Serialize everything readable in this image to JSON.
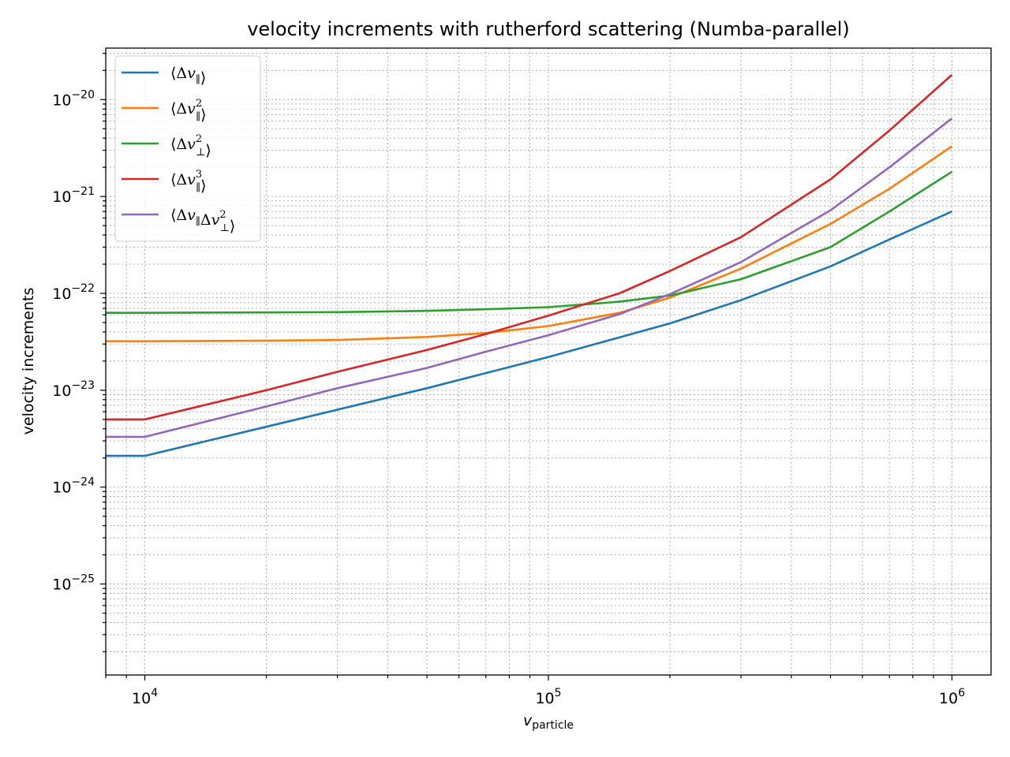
{
  "chart_data": {
    "type": "line",
    "title": "velocity increments with rutherford scattering (Numba-parallel)",
    "xlabel": "v",
    "xlabel_sub": "particle",
    "ylabel": "velocity increments",
    "xscale": "log",
    "yscale": "log",
    "xlim": [
      8000,
      1250000
    ],
    "ylim": [
      1.15e-26,
      3.4e-20
    ],
    "grid": true,
    "grid_minor": true,
    "legend_position": "top-left",
    "x_ticks": [
      {
        "value": 10000,
        "base": "10",
        "exp": "4"
      },
      {
        "value": 100000,
        "base": "10",
        "exp": "5"
      },
      {
        "value": 1000000,
        "base": "10",
        "exp": "6"
      }
    ],
    "y_ticks": [
      {
        "value": 1e-25,
        "base": "10",
        "exp": "−25"
      },
      {
        "value": 1e-24,
        "base": "10",
        "exp": "−24"
      },
      {
        "value": 1e-23,
        "base": "10",
        "exp": "−23"
      },
      {
        "value": 1e-22,
        "base": "10",
        "exp": "−22"
      },
      {
        "value": 1e-21,
        "base": "10",
        "exp": "−21"
      },
      {
        "value": 1e-20,
        "base": "10",
        "exp": "−20"
      }
    ],
    "series": [
      {
        "name": "⟨Δv∥⟩",
        "legend": {
          "pre": "⟨Δ",
          "v": "v",
          "sub": "∥",
          "sup": "",
          "v2": "",
          "sub2": "",
          "sup2": "",
          "post": "⟩"
        },
        "color": "#1f77b4",
        "points": [
          [
            8000,
            2.1e-24
          ],
          [
            10000,
            2.1e-24
          ],
          [
            20000,
            4.2e-24
          ],
          [
            50000,
            1.05e-23
          ],
          [
            100000,
            2.2e-23
          ],
          [
            200000,
            4.9e-23
          ],
          [
            300000,
            8.5e-23
          ],
          [
            500000,
            1.9e-22
          ],
          [
            700000,
            3.6e-22
          ],
          [
            1000000,
            7e-22
          ]
        ]
      },
      {
        "name": "⟨Δv∥²⟩",
        "legend": {
          "pre": "⟨Δ",
          "v": "v",
          "sub": "∥",
          "sup": "2",
          "v2": "",
          "sub2": "",
          "sup2": "",
          "post": "⟩"
        },
        "color": "#ff7f0e",
        "points": [
          [
            8000,
            3.2e-23
          ],
          [
            10000,
            3.2e-23
          ],
          [
            20000,
            3.25e-23
          ],
          [
            30000,
            3.3e-23
          ],
          [
            50000,
            3.55e-23
          ],
          [
            70000,
            3.9e-23
          ],
          [
            100000,
            4.6e-23
          ],
          [
            150000,
            6.3e-23
          ],
          [
            200000,
            9e-23
          ],
          [
            300000,
            1.8e-22
          ],
          [
            500000,
            5.2e-22
          ],
          [
            700000,
            1.2e-21
          ],
          [
            1000000,
            3.3e-21
          ]
        ]
      },
      {
        "name": "⟨Δv⊥²⟩",
        "legend": {
          "pre": "⟨Δ",
          "v": "v",
          "sub": "⊥",
          "sup": "2",
          "v2": "",
          "sub2": "",
          "sup2": "",
          "post": "⟩"
        },
        "color": "#2ca02c",
        "points": [
          [
            8000,
            6.3e-23
          ],
          [
            10000,
            6.3e-23
          ],
          [
            20000,
            6.35e-23
          ],
          [
            30000,
            6.4e-23
          ],
          [
            50000,
            6.6e-23
          ],
          [
            70000,
            6.85e-23
          ],
          [
            100000,
            7.2e-23
          ],
          [
            150000,
            8.2e-23
          ],
          [
            200000,
            9.5e-23
          ],
          [
            300000,
            1.4e-22
          ],
          [
            500000,
            3e-22
          ],
          [
            700000,
            7e-22
          ],
          [
            1000000,
            1.8e-21
          ]
        ]
      },
      {
        "name": "⟨Δv∥³⟩",
        "legend": {
          "pre": "⟨Δ",
          "v": "v",
          "sub": "∥",
          "sup": "3",
          "v2": "",
          "sub2": "",
          "sup2": "",
          "post": "⟩"
        },
        "color": "#d62728",
        "points": [
          [
            8000,
            5e-24
          ],
          [
            10000,
            5e-24
          ],
          [
            20000,
            1e-23
          ],
          [
            30000,
            1.55e-23
          ],
          [
            50000,
            2.6e-23
          ],
          [
            70000,
            3.8e-23
          ],
          [
            100000,
            5.9e-23
          ],
          [
            150000,
            1e-22
          ],
          [
            200000,
            1.7e-22
          ],
          [
            300000,
            3.8e-22
          ],
          [
            500000,
            1.5e-21
          ],
          [
            700000,
            4.8e-21
          ],
          [
            1000000,
            1.8e-20
          ]
        ]
      },
      {
        "name": "⟨Δv∥Δv⊥²⟩",
        "legend": {
          "pre": "⟨Δ",
          "v": "v",
          "sub": "∥",
          "sup": "",
          "v2": "Δv",
          "sub2": "⊥",
          "sup2": "2",
          "post": "⟩"
        },
        "color": "#9467bd",
        "points": [
          [
            8000,
            3.3e-24
          ],
          [
            10000,
            3.3e-24
          ],
          [
            20000,
            6.8e-24
          ],
          [
            30000,
            1.05e-23
          ],
          [
            50000,
            1.7e-23
          ],
          [
            70000,
            2.5e-23
          ],
          [
            100000,
            3.7e-23
          ],
          [
            150000,
            6.1e-23
          ],
          [
            200000,
            9.8e-23
          ],
          [
            300000,
            2.1e-22
          ],
          [
            500000,
            7.2e-22
          ],
          [
            700000,
            2e-21
          ],
          [
            1000000,
            6.4e-21
          ]
        ]
      }
    ]
  }
}
